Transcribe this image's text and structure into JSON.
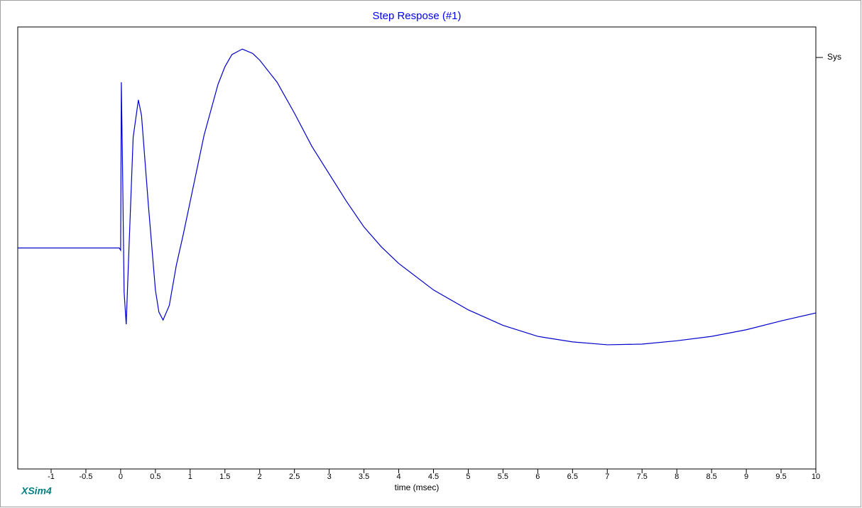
{
  "chart_data": {
    "type": "line",
    "title": "Step Respose (#1)",
    "x_label": "time (msec)",
    "annotation": "XSim4",
    "x": [
      -1.48,
      -1.0,
      -0.5,
      -0.02,
      0.0,
      0.01,
      0.03,
      0.05,
      0.08,
      0.12,
      0.18,
      0.255,
      0.3,
      0.4,
      0.5,
      0.55,
      0.61,
      0.7,
      0.8,
      0.9,
      1.0,
      1.2,
      1.4,
      1.5,
      1.6,
      1.75,
      1.9,
      2.0,
      2.25,
      2.5,
      2.75,
      3.0,
      3.25,
      3.5,
      3.75,
      4.0,
      4.5,
      5.0,
      5.5,
      6.0,
      6.5,
      7.0,
      7.5,
      8.0,
      8.5,
      9.0,
      9.5,
      10.0
    ],
    "series": [
      {
        "name": "Sys",
        "color": "#0000cc",
        "values": [
          0,
          0,
          0,
          0,
          -0.01,
          0.75,
          0.3,
          -0.2,
          -0.345,
          0,
          0.5,
          0.67,
          0.6,
          0.19,
          -0.19,
          -0.29,
          -0.326,
          -0.26,
          -0.08,
          0.06,
          0.21,
          0.51,
          0.74,
          0.82,
          0.875,
          0.9,
          0.88,
          0.85,
          0.75,
          0.61,
          0.46,
          0.335,
          0.21,
          0.095,
          0.005,
          -0.07,
          -0.19,
          -0.28,
          -0.35,
          -0.4,
          -0.425,
          -0.438,
          -0.435,
          -0.42,
          -0.4,
          -0.37,
          -0.33,
          -0.294
        ]
      }
    ],
    "xlim": [
      -1.48,
      10
    ],
    "ylim": [
      -1,
      1
    ],
    "xticks": [
      -1,
      -0.5,
      0,
      0.5,
      1,
      1.5,
      2,
      2.5,
      3,
      3.5,
      4,
      4.5,
      5,
      5.5,
      6,
      6.5,
      7,
      7.5,
      8,
      8.5,
      9,
      9.5,
      10
    ],
    "legend": "top-right",
    "grid": false
  }
}
